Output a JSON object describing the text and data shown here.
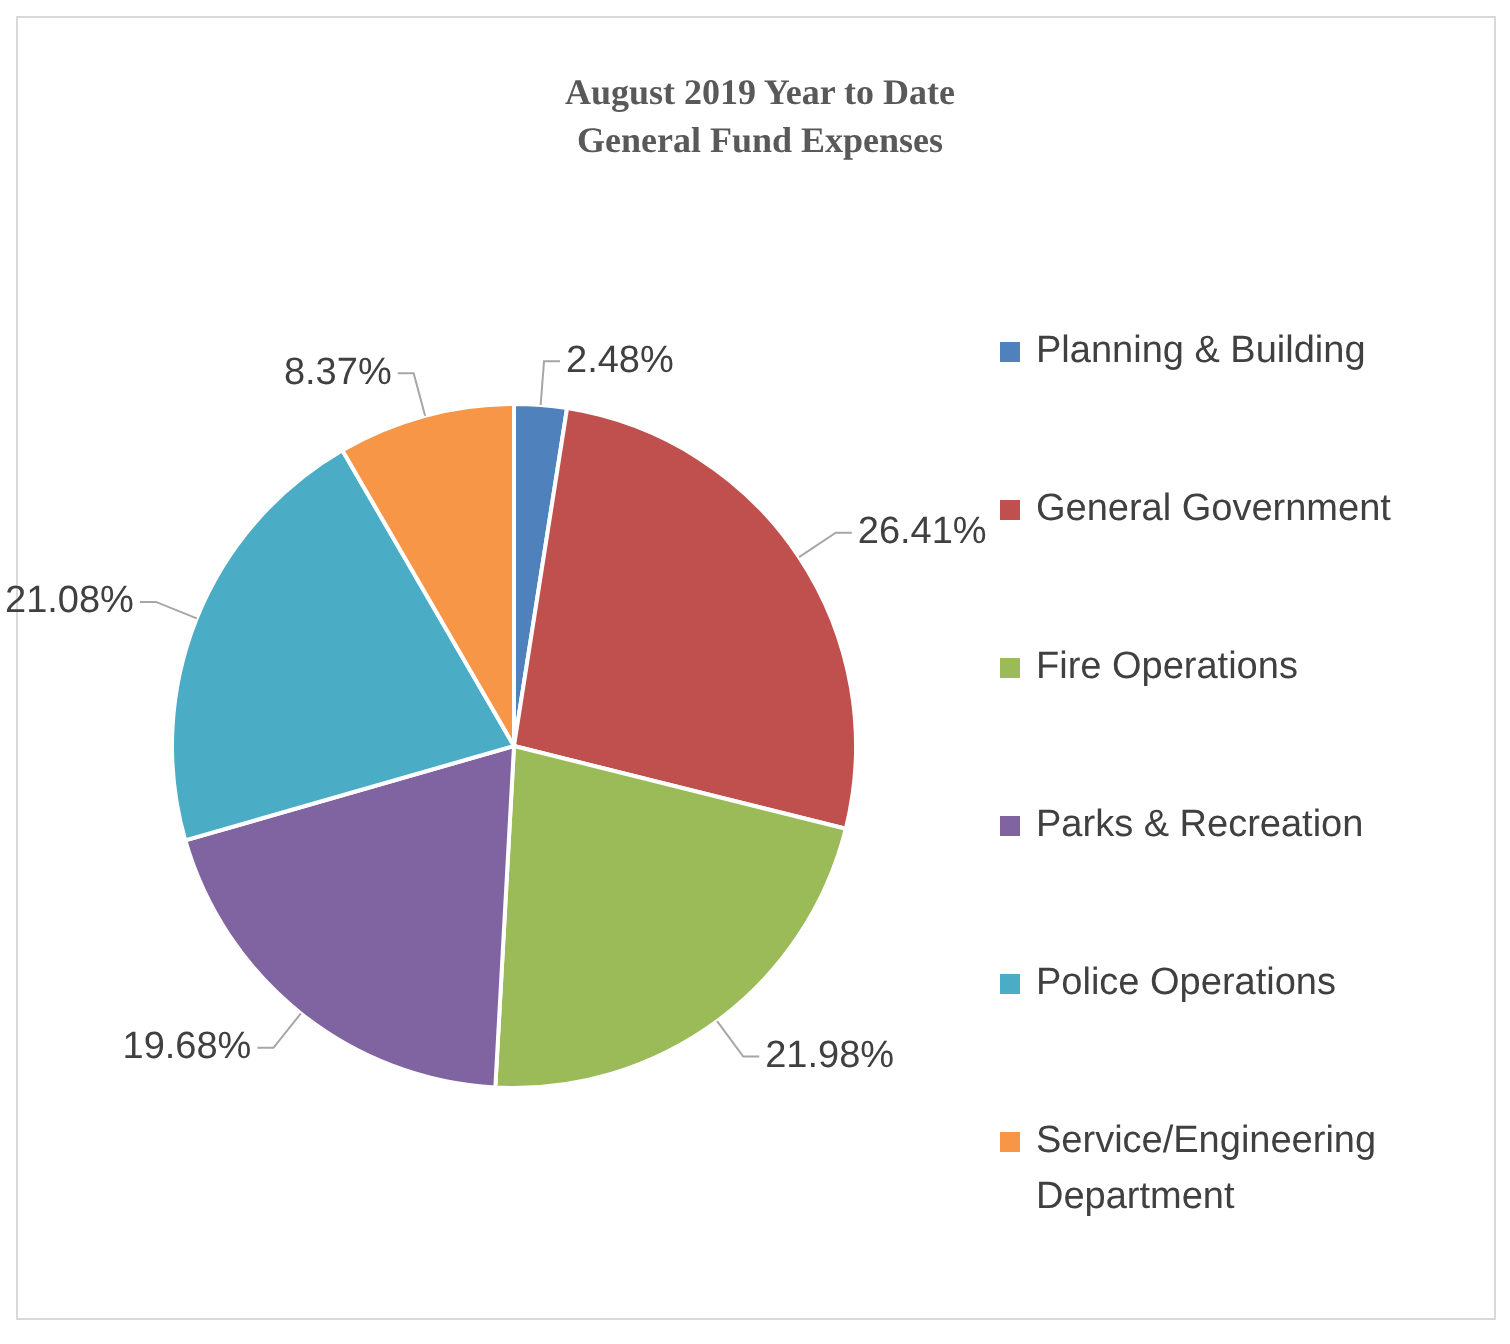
{
  "chart_data": {
    "type": "pie",
    "title": "August 2019 Year to Date General Fund Expenses",
    "categories": [
      "Planning & Building",
      "General Government",
      "Fire Operations",
      "Parks & Recreation",
      "Police Operations",
      "Service/Engineering Department"
    ],
    "values": [
      2.48,
      26.41,
      21.98,
      19.68,
      21.08,
      8.37
    ],
    "value_labels": [
      "2.48%",
      "26.41%",
      "21.98%",
      "19.68%",
      "21.08%",
      "8.37%"
    ],
    "colors": [
      "#4f81bd",
      "#c0504d",
      "#9bbb59",
      "#8064a2",
      "#4bacc6",
      "#f79646"
    ],
    "legend": "right"
  }
}
